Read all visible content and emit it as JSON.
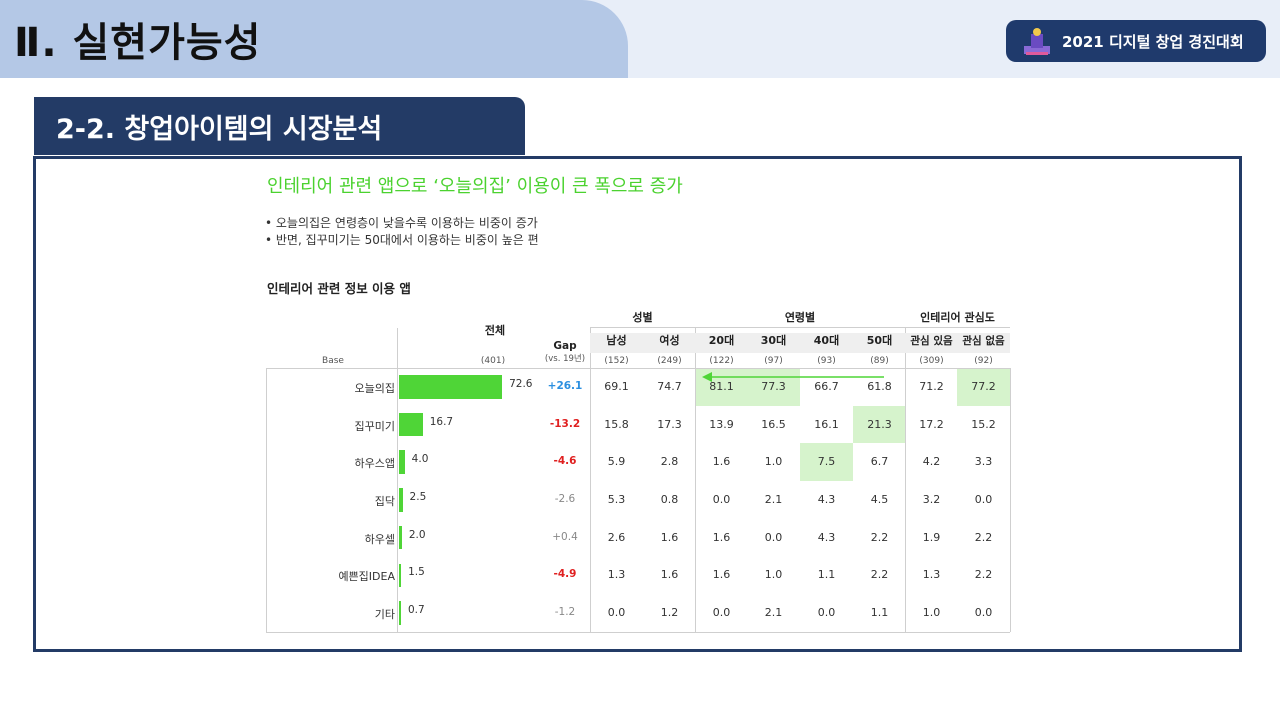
{
  "header": {
    "page_title": "Ⅱ. 실현가능성",
    "event_badge": "2021 디지털 창업 경진대회",
    "section_title": "2-2. 창업아이템의 시장분석"
  },
  "content": {
    "headline": "인테리어 관련 앱으로 ‘오늘의집’ 이용이 큰 폭으로 증가",
    "bullets": [
      "•  오늘의집은 연령층이 낮을수록 이용하는 비중이 증가",
      "•  반면, 집꾸미기는 50대에서 이용하는 비중이 높은 편"
    ],
    "table_title": "인테리어 관련 정보 이용 앱"
  },
  "table": {
    "total_label": "전체",
    "gap_label": "Gap",
    "gap_sub": "(vs. 19년)",
    "base_label": "Base",
    "total_base": "(401)",
    "group_gender": "성별",
    "group_age": "연령별",
    "group_interest": "인테리어 관심도",
    "columns": [
      "남성",
      "여성",
      "20대",
      "30대",
      "40대",
      "50대",
      "관심 있음",
      "관심 없음"
    ],
    "bases": [
      "(152)",
      "(249)",
      "(122)",
      "(97)",
      "(93)",
      "(89)",
      "(309)",
      "(92)"
    ],
    "rows": [
      {
        "name": "오늘의집",
        "total": "72.6",
        "gap": "+26.1",
        "c": [
          "69.1",
          "74.7",
          "81.1",
          "77.3",
          "66.7",
          "61.8",
          "71.2",
          "77.2"
        ]
      },
      {
        "name": "집꾸미기",
        "total": "16.7",
        "gap": "-13.2",
        "c": [
          "15.8",
          "17.3",
          "13.9",
          "16.5",
          "16.1",
          "21.3",
          "17.2",
          "15.2"
        ]
      },
      {
        "name": "하우스앱",
        "total": "4.0",
        "gap": "-4.6",
        "c": [
          "5.9",
          "2.8",
          "1.6",
          "1.0",
          "7.5",
          "6.7",
          "4.2",
          "3.3"
        ]
      },
      {
        "name": "집닥",
        "total": "2.5",
        "gap": "-2.6",
        "c": [
          "5.3",
          "0.8",
          "0.0",
          "2.1",
          "4.3",
          "4.5",
          "3.2",
          "0.0"
        ]
      },
      {
        "name": "하우셀",
        "total": "2.0",
        "gap": "+0.4",
        "c": [
          "2.6",
          "1.6",
          "1.6",
          "0.0",
          "4.3",
          "2.2",
          "1.9",
          "2.2"
        ]
      },
      {
        "name": "예쁜집IDEA",
        "total": "1.5",
        "gap": "-4.9",
        "c": [
          "1.3",
          "1.6",
          "1.6",
          "1.0",
          "1.1",
          "2.2",
          "1.3",
          "2.2"
        ]
      },
      {
        "name": "기타",
        "total": "0.7",
        "gap": "-1.2",
        "c": [
          "0.0",
          "1.2",
          "0.0",
          "2.1",
          "0.0",
          "1.1",
          "1.0",
          "0.0"
        ]
      }
    ],
    "gap_colors": [
      "#2b8fe0",
      "#e02020",
      "#e02020",
      "#888888",
      "#888888",
      "#e02020",
      "#888888"
    ],
    "gap_bold": [
      true,
      true,
      true,
      false,
      false,
      true,
      false
    ],
    "bar_color": "#4fd537",
    "highlight_color": "#d6f3cc"
  }
}
